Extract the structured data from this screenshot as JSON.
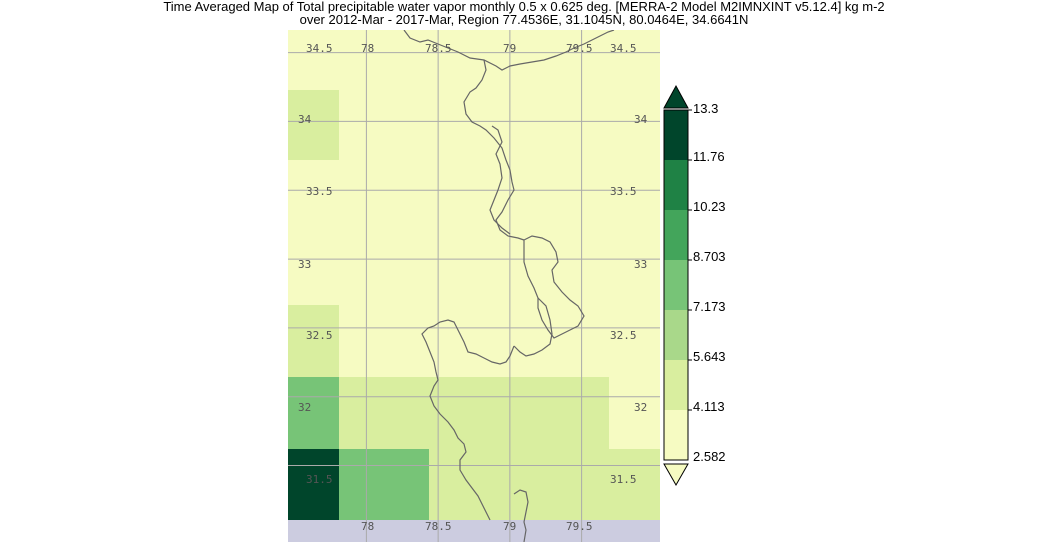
{
  "title": {
    "line1": "Time Averaged Map of Total precipitable water vapor monthly 0.5 x 0.625 deg. [MERRA-2 Model M2IMNXINT v5.12.4] kg m-2",
    "line2": "over 2012-Mar - 2017-Mar, Region 77.4536E, 31.1045N, 80.0464E, 34.6641N"
  },
  "map": {
    "lon_range": [
      77.4536,
      80.0464
    ],
    "lat_range": [
      31.1045,
      34.6641
    ],
    "grid_lons": [
      78,
      78.5,
      79,
      79.5
    ],
    "grid_lats": [
      31.5,
      32,
      32.5,
      33,
      33.5,
      34,
      34.5
    ],
    "top_lon_labels": [
      "78",
      "78.5",
      "79",
      "79.5"
    ],
    "bottom_lon_labels": [
      "78",
      "78.5",
      "79",
      "79.5"
    ],
    "left_lat_labels": [
      "31.5",
      "32",
      "32.5",
      "33",
      "33.5",
      "34",
      "34.5"
    ],
    "right_lat_labels": [
      "31.5",
      "32",
      "32.5",
      "33",
      "33.5",
      "34",
      "34.5"
    ],
    "colors": {
      "nodata": "#cccce0",
      "level1": "#f6fbc2",
      "level2": "#d9ee9f",
      "level3": "#a9d88a",
      "level4": "#77c477",
      "level5": "#43a55b",
      "level6": "#1f8245",
      "level7": "#00452b",
      "border": "#666666",
      "grid": "#aaaaaa"
    }
  },
  "colorbar": {
    "labels": [
      "13.3",
      "11.76",
      "10.23",
      "8.703",
      "7.173",
      "5.643",
      "4.113",
      "2.582"
    ],
    "colors": [
      "#00452b",
      "#1f8245",
      "#43a55b",
      "#77c477",
      "#a9d88a",
      "#d9ee9f",
      "#f6fbc2"
    ],
    "over_color": "#00452b",
    "under_color": "#f6fbc2"
  }
}
